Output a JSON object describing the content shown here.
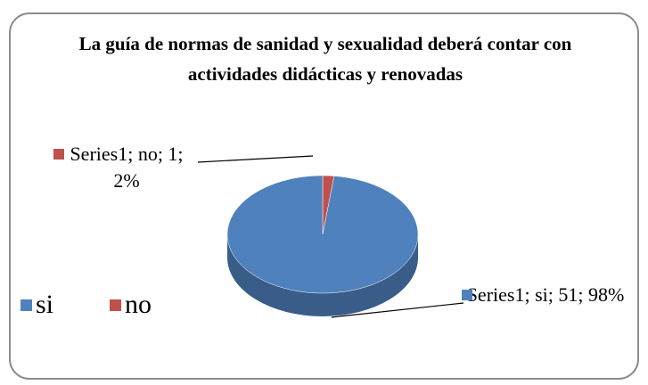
{
  "chart_data": {
    "type": "pie",
    "title": "La guía de normas de sanidad y sexualidad deberá contar con   actividades didácticas y renovadas",
    "categories": [
      "si",
      "no"
    ],
    "series": [
      {
        "name": "Series1",
        "values": [
          51,
          1
        ],
        "colors": [
          "#4f81bd",
          "#c0504d"
        ],
        "value_labels": [
          "Series1; si; 51; 98%",
          "Series1; no; 1; 2%"
        ]
      }
    ],
    "legend": "bottom-left"
  }
}
